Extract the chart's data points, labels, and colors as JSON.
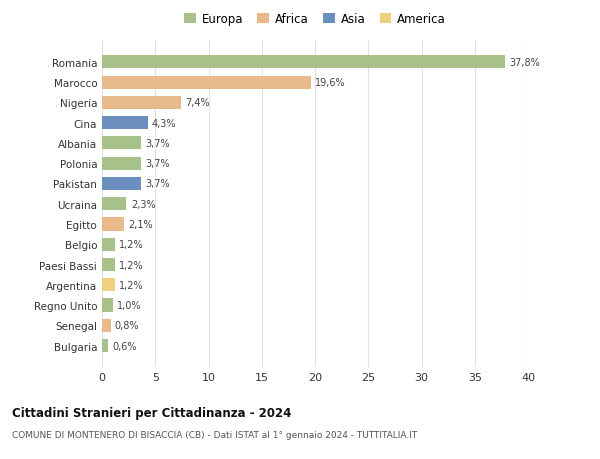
{
  "countries": [
    "Romania",
    "Marocco",
    "Nigeria",
    "Cina",
    "Albania",
    "Polonia",
    "Pakistan",
    "Ucraina",
    "Egitto",
    "Belgio",
    "Paesi Bassi",
    "Argentina",
    "Regno Unito",
    "Senegal",
    "Bulgaria"
  ],
  "values": [
    37.8,
    19.6,
    7.4,
    4.3,
    3.7,
    3.7,
    3.7,
    2.3,
    2.1,
    1.2,
    1.2,
    1.2,
    1.0,
    0.8,
    0.6
  ],
  "labels": [
    "37,8%",
    "19,6%",
    "7,4%",
    "4,3%",
    "3,7%",
    "3,7%",
    "3,7%",
    "2,3%",
    "2,1%",
    "1,2%",
    "1,2%",
    "1,2%",
    "1,0%",
    "0,8%",
    "0,6%"
  ],
  "colors": [
    "#a8c08a",
    "#e8b98a",
    "#e8b98a",
    "#6a8fbf",
    "#a8c08a",
    "#a8c08a",
    "#6a8fbf",
    "#a8c08a",
    "#e8b98a",
    "#a8c08a",
    "#a8c08a",
    "#f0d080",
    "#a8c08a",
    "#e8b98a",
    "#a8c08a"
  ],
  "legend_labels": [
    "Europa",
    "Africa",
    "Asia",
    "America"
  ],
  "legend_colors": [
    "#a8c08a",
    "#e8b98a",
    "#6a8fbf",
    "#f0d080"
  ],
  "title1": "Cittadini Stranieri per Cittadinanza - 2024",
  "title2": "COMUNE DI MONTENERO DI BISACCIA (CB) - Dati ISTAT al 1° gennaio 2024 - TUTTITALIA.IT",
  "xlim": [
    0,
    40
  ],
  "xticks": [
    0,
    5,
    10,
    15,
    20,
    25,
    30,
    35,
    40
  ],
  "background_color": "#ffffff",
  "grid_color": "#e0e0e0",
  "bar_height": 0.65
}
